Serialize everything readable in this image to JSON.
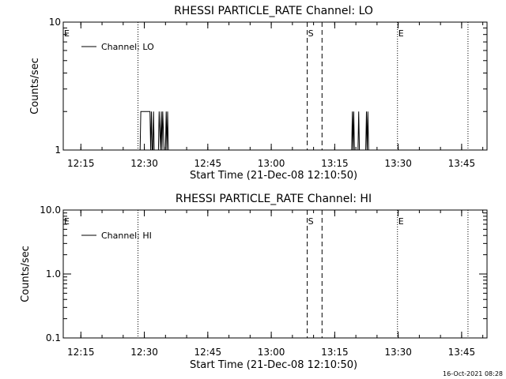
{
  "chart_data": [
    {
      "type": "line",
      "title": "RHESSI PARTICLE_RATE Channel: LO",
      "xlabel": "Start Time (21-Dec-08 12:10:50)",
      "ylabel": "Counts/sec",
      "yscale": "log",
      "ylim": [
        1,
        10
      ],
      "xlim": [
        "12:10:50",
        "13:51:00"
      ],
      "x_ticks": [
        "12:15",
        "12:30",
        "12:45",
        "13:00",
        "13:15",
        "13:30",
        "13:45"
      ],
      "y_ticks": [
        "1",
        "10"
      ],
      "legend": {
        "label": "Channel: LO",
        "placement": "top-left"
      },
      "markers": [
        {
          "time": "12:10:50",
          "style": "solid",
          "label": "E"
        },
        {
          "time": "12:28:30",
          "style": "dotted",
          "label": ""
        },
        {
          "time": "13:08:30",
          "style": "dashed",
          "label": "S"
        },
        {
          "time": "13:12:00",
          "style": "dashed",
          "label": ""
        },
        {
          "time": "13:29:50",
          "style": "dotted",
          "label": "E"
        },
        {
          "time": "13:46:30",
          "style": "dotted",
          "label": ""
        }
      ],
      "series": [
        {
          "name": "Channel: LO",
          "points": [
            [
              "12:28:30",
              1
            ],
            [
              "12:29:00",
              1
            ],
            [
              "12:29:10",
              2
            ],
            [
              "12:31:20",
              2
            ],
            [
              "12:31:30",
              1
            ],
            [
              "12:31:40",
              2
            ],
            [
              "12:31:50",
              1
            ],
            [
              "12:32:00",
              1
            ],
            [
              "12:32:10",
              2
            ],
            [
              "12:32:20",
              1
            ],
            [
              "12:33:20",
              1
            ],
            [
              "12:33:30",
              2
            ],
            [
              "12:33:50",
              1
            ],
            [
              "12:34:00",
              2
            ],
            [
              "12:34:10",
              1
            ],
            [
              "12:34:20",
              2
            ],
            [
              "12:34:40",
              1
            ],
            [
              "12:35:00",
              1
            ],
            [
              "12:35:10",
              2
            ],
            [
              "12:35:20",
              1
            ],
            [
              "12:35:30",
              2
            ],
            [
              "12:35:40",
              1
            ],
            [
              "13:19:00",
              1
            ],
            [
              "13:19:10",
              2
            ],
            [
              "13:19:20",
              1
            ],
            [
              "13:19:30",
              2
            ],
            [
              "13:19:40",
              1
            ],
            [
              "13:20:30",
              1
            ],
            [
              "13:20:40",
              2
            ],
            [
              "13:20:50",
              1
            ],
            [
              "13:22:20",
              1
            ],
            [
              "13:22:30",
              2
            ],
            [
              "13:22:40",
              1
            ],
            [
              "13:22:50",
              2
            ],
            [
              "13:23:00",
              1
            ]
          ]
        }
      ]
    },
    {
      "type": "line",
      "title": "RHESSI PARTICLE_RATE Channel: HI",
      "xlabel": "Start Time (21-Dec-08 12:10:50)",
      "ylabel": "Counts/sec",
      "yscale": "log",
      "ylim": [
        0.1,
        10
      ],
      "xlim": [
        "12:10:50",
        "13:51:00"
      ],
      "x_ticks": [
        "12:15",
        "12:30",
        "12:45",
        "13:00",
        "13:15",
        "13:30",
        "13:45"
      ],
      "y_ticks": [
        "0.1",
        "1.0",
        "10.0"
      ],
      "legend": {
        "label": "Channel: HI",
        "placement": "top-left"
      },
      "markers": [
        {
          "time": "12:10:50",
          "style": "solid",
          "label": "E"
        },
        {
          "time": "12:28:30",
          "style": "dotted",
          "label": ""
        },
        {
          "time": "13:08:30",
          "style": "dashed",
          "label": "S"
        },
        {
          "time": "13:12:00",
          "style": "dashed",
          "label": ""
        },
        {
          "time": "13:29:50",
          "style": "dotted",
          "label": "E"
        },
        {
          "time": "13:46:30",
          "style": "dotted",
          "label": ""
        }
      ],
      "series": [
        {
          "name": "Channel: HI",
          "points": []
        }
      ]
    }
  ],
  "footer": {
    "timestamp": "16-Oct-2021 08:28"
  }
}
